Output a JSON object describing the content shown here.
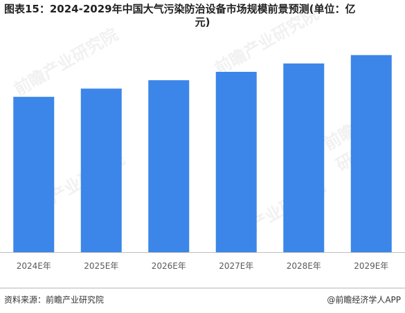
{
  "title_line1": "图表15：2024-2029年中国大气污染防治设备市场规模前景预测(单位：亿",
  "title_line2": "元)",
  "footer": {
    "source": "资料来源：前瞻产业研究院",
    "brand": "@前瞻经济学人APP"
  },
  "watermark": "前瞻产业研究院",
  "colors": {
    "bar": "#3b86e8",
    "axis": "#bfbfbf",
    "tick_text": "#595959"
  },
  "chart_data": {
    "type": "bar",
    "title": "图表15：2024-2029年中国大气污染防治设备市场规模前景预测(单位：亿元)",
    "categories": [
      "2024E年",
      "2025E年",
      "2026E年",
      "2027E年",
      "2028E年",
      "2029E年"
    ],
    "values": [
      1001,
      1054,
      1108,
      1162,
      1216,
      1270
    ],
    "ylim": [
      0,
      1380
    ],
    "grid": false,
    "legend": "none",
    "data_labels": false
  }
}
